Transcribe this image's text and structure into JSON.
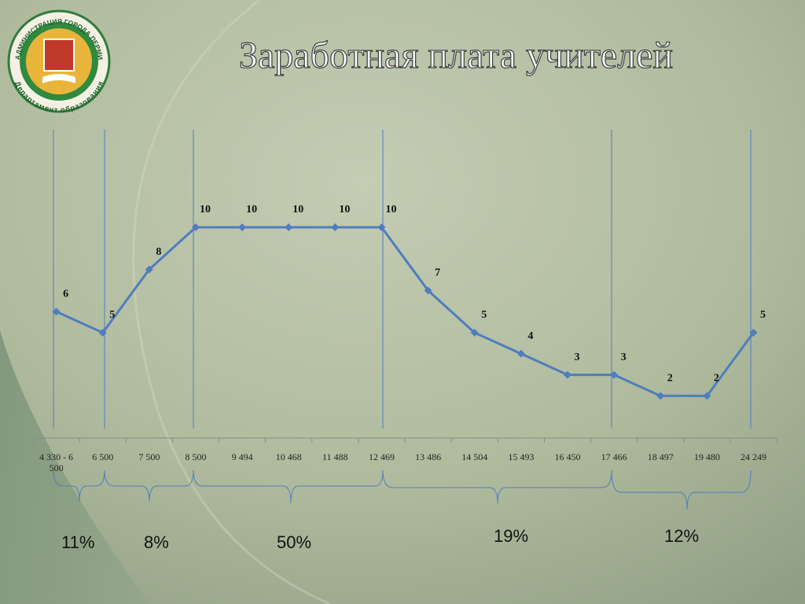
{
  "logo": {
    "top_text": "АДМИНИСТРАЦИЯ ГОРОДА ПЕРМИ",
    "bottom_text": "Департамент образования"
  },
  "chart_data": {
    "type": "line",
    "title": "Заработная плата учителей",
    "categories": [
      "4 330 - 6 500",
      "6 500",
      "7 500",
      "8 500",
      "9 494",
      "10 468",
      "11 488",
      "12 469",
      "13 486",
      "14 504",
      "15 493",
      "16 450",
      "17 466",
      "18 497",
      "19 480",
      "24 249"
    ],
    "values": [
      6,
      5,
      8,
      10,
      10,
      10,
      10,
      10,
      7,
      5,
      4,
      3,
      3,
      2,
      2,
      5
    ],
    "color": "#4f7dbd",
    "annotations": [
      "11%",
      "8%",
      "50%",
      "19%",
      "12%"
    ]
  }
}
